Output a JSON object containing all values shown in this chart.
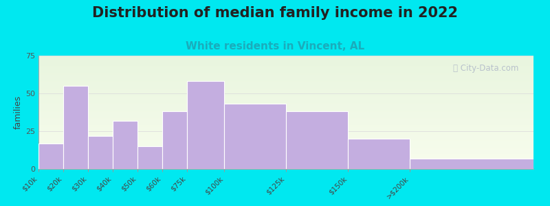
{
  "title": "Distribution of median family income in 2022",
  "subtitle": "White residents in Vincent, AL",
  "ylabel": "families",
  "categories": [
    "$10k",
    "$20k",
    "$30k",
    "$40k",
    "$50k",
    "$60k",
    "$75k",
    "$100k",
    "$125k",
    "$150k",
    ">$200k"
  ],
  "values": [
    17,
    55,
    22,
    32,
    15,
    38,
    58,
    43,
    38,
    20,
    7
  ],
  "edges": [
    0,
    10,
    20,
    30,
    40,
    50,
    60,
    75,
    100,
    125,
    150,
    200
  ],
  "bar_color": "#c4aee0",
  "bar_edge_color": "#ffffff",
  "ylim": [
    0,
    75
  ],
  "yticks": [
    0,
    25,
    50,
    75
  ],
  "background_color": "#00e8f0",
  "title_fontsize": 15,
  "subtitle_fontsize": 11,
  "subtitle_color": "#1aacbb",
  "watermark_text": "ⓘ City-Data.com",
  "watermark_color": "#b0b8c8"
}
